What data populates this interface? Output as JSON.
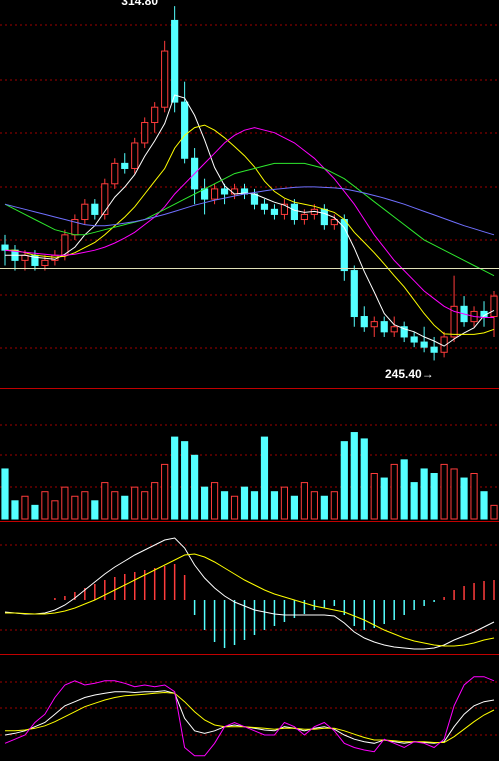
{
  "chart_data": [
    {
      "type": "candlestick",
      "ylim": [
        240,
        316
      ],
      "up_color": "#ff3c3c",
      "down_color": "#54ffff",
      "ohlc": [
        [
          268,
          270,
          264,
          267
        ],
        [
          267,
          268,
          263,
          265
        ],
        [
          265,
          267,
          263,
          266
        ],
        [
          266,
          267,
          263,
          264
        ],
        [
          264,
          266,
          263,
          265
        ],
        [
          265,
          267,
          264,
          266
        ],
        [
          266,
          271,
          265,
          270
        ],
        [
          270,
          274,
          269,
          273
        ],
        [
          273,
          277,
          272,
          276
        ],
        [
          276,
          277,
          273,
          274
        ],
        [
          274,
          281,
          273,
          280
        ],
        [
          280,
          285,
          279,
          284
        ],
        [
          284,
          286,
          282,
          283
        ],
        [
          283,
          289,
          282,
          288
        ],
        [
          288,
          293,
          287,
          292
        ],
        [
          292,
          296,
          290,
          295
        ],
        [
          295,
          308,
          294,
          306
        ],
        [
          312,
          314.8,
          294,
          296
        ],
        [
          296,
          300,
          284,
          285
        ],
        [
          285,
          287,
          276,
          279
        ],
        [
          279,
          281,
          274,
          277
        ],
        [
          277,
          280,
          276,
          279
        ],
        [
          279,
          280,
          276,
          278
        ],
        [
          278,
          280,
          277,
          279
        ],
        [
          279,
          280,
          277,
          278
        ],
        [
          278,
          279,
          275,
          276
        ],
        [
          276,
          277,
          274,
          275
        ],
        [
          275,
          276,
          273,
          274
        ],
        [
          274,
          277,
          273,
          276
        ],
        [
          276,
          277,
          272,
          273
        ],
        [
          273,
          275,
          272,
          274
        ],
        [
          274,
          276,
          273,
          275
        ],
        [
          275,
          276,
          271,
          272
        ],
        [
          272,
          274,
          271,
          273
        ],
        [
          273,
          274,
          261,
          263
        ],
        [
          263,
          264,
          252,
          254
        ],
        [
          254,
          256,
          251,
          252
        ],
        [
          252,
          254,
          250,
          253
        ],
        [
          253,
          254,
          250,
          251
        ],
        [
          251,
          254,
          250,
          252
        ],
        [
          252,
          253,
          249,
          250
        ],
        [
          250,
          251,
          248,
          249
        ],
        [
          249,
          252,
          247,
          248
        ],
        [
          248,
          250,
          245.4,
          247
        ],
        [
          247,
          251,
          246,
          250
        ],
        [
          250,
          262,
          249,
          256
        ],
        [
          256,
          258,
          252,
          253
        ],
        [
          253,
          256,
          252,
          255
        ],
        [
          255,
          257,
          252,
          254
        ],
        [
          254,
          259,
          250,
          258
        ]
      ],
      "series": [
        {
          "color": "#ffffff",
          "values": [
            266,
            266,
            266,
            265.6,
            265.4,
            265.2,
            266.2,
            267.6,
            270,
            271.8,
            274.6,
            277.4,
            279.4,
            281.8,
            285.4,
            288.4,
            291.8,
            297.4,
            296.8,
            293.4,
            288.6,
            283.2,
            279.6,
            278,
            278.2,
            278,
            277.2,
            276.4,
            275.8,
            274.8,
            274.4,
            274.6,
            274.2,
            273.4,
            271.4,
            267.4,
            262.8,
            258.8,
            254.6,
            252.4,
            251.6,
            251,
            250,
            249.2,
            248.2,
            249.6,
            250.8,
            251.8,
            254.2,
            255.2
          ]
        },
        {
          "color": "#ffff00",
          "values": [
            267,
            267,
            266.5,
            266,
            265.8,
            265.6,
            265.8,
            266.5,
            267.5,
            268.5,
            270,
            271.8,
            273.5,
            275.5,
            278,
            280.5,
            283,
            287,
            289.5,
            291,
            291.5,
            290.5,
            289,
            287.3,
            285.5,
            283.3,
            280.5,
            278.5,
            277.2,
            276.4,
            276,
            275.6,
            275,
            274.4,
            273,
            270.5,
            268.5,
            266.5,
            264.3,
            262,
            259.8,
            257.2,
            254.6,
            252.3,
            250.6,
            250.5,
            250.5,
            250.5,
            250.8,
            251.5
          ]
        },
        {
          "color": "#ff00ff",
          "values": [
            267,
            266.8,
            266.6,
            266.4,
            266.2,
            266,
            266,
            266.2,
            266.6,
            267,
            267.6,
            268.4,
            269.4,
            270.5,
            272,
            273.5,
            275.5,
            278,
            280,
            282,
            284,
            286,
            288,
            289.5,
            290.5,
            291,
            290.5,
            290,
            289,
            288,
            286.5,
            285,
            283,
            281,
            278.5,
            276,
            273,
            270,
            267.5,
            265,
            263,
            261,
            259,
            257.5,
            256,
            255,
            254.5,
            254,
            253.8,
            253.8
          ]
        },
        {
          "color": "#2ee82e",
          "values": [
            276,
            275,
            274,
            273,
            272,
            271,
            270.5,
            270,
            270,
            270.5,
            271,
            271.5,
            272,
            272.5,
            273,
            274,
            275,
            276,
            277,
            278,
            279,
            280,
            281,
            282,
            282.5,
            283,
            283.5,
            284,
            284,
            284,
            284,
            283.5,
            283,
            282,
            281,
            279.5,
            278,
            276.5,
            275,
            273.5,
            272,
            270.5,
            269,
            268,
            267,
            266,
            265,
            264,
            263,
            262
          ]
        },
        {
          "color": "#7070ff",
          "values": [
            276,
            275.5,
            275,
            274.5,
            274,
            273.5,
            273,
            272.5,
            272,
            271.8,
            271.8,
            272,
            272.3,
            272.6,
            273,
            273.5,
            274,
            274.6,
            275.2,
            275.8,
            276.3,
            276.8,
            277.2,
            277.6,
            278,
            278.3,
            278.6,
            278.9,
            279.1,
            279.3,
            279.4,
            279.4,
            279.3,
            279.2,
            279,
            278.6,
            278.2,
            277.7,
            277.2,
            276.6,
            276,
            275.3,
            274.6,
            273.9,
            273.2,
            272.5,
            271.8,
            271.2,
            270.6,
            270
          ]
        }
      ],
      "ref_line": 263.4,
      "ref_line_color": "#e0e0b8",
      "annotations": [
        "314.80",
        "245.40→"
      ]
    },
    {
      "type": "volume",
      "ylim": [
        0,
        100
      ],
      "values": [
        55,
        20,
        25,
        15,
        30,
        20,
        35,
        25,
        30,
        20,
        40,
        30,
        25,
        35,
        30,
        40,
        60,
        90,
        85,
        70,
        35,
        40,
        30,
        25,
        35,
        30,
        90,
        30,
        35,
        25,
        40,
        30,
        25,
        30,
        85,
        95,
        88,
        50,
        45,
        60,
        65,
        40,
        55,
        50,
        60,
        55,
        45,
        50,
        30,
        15
      ]
    },
    {
      "type": "macd",
      "ylim": [
        -5.5,
        7.5
      ],
      "up_color": "#ff3c3c",
      "down_color": "#54ffff",
      "histogram": [
        0,
        0,
        0,
        0,
        0,
        0.2,
        0.4,
        0.8,
        1.2,
        1.6,
        2,
        2.3,
        2.6,
        2.8,
        3,
        3.2,
        3.4,
        3.6,
        2.5,
        -1.5,
        -3,
        -4.2,
        -4.8,
        -4.5,
        -4,
        -3.5,
        -3,
        -2.6,
        -2.2,
        -1.8,
        -1.4,
        -1,
        -0.8,
        -0.6,
        -1.5,
        -2.6,
        -3,
        -2.8,
        -2.4,
        -2,
        -1.5,
        -1,
        -0.6,
        -0.2,
        0.3,
        1,
        1.4,
        1.7,
        1.9,
        2
      ],
      "series": [
        {
          "color": "#ffffff",
          "values": [
            -1.2,
            -1.3,
            -1.4,
            -1.4,
            -1.3,
            -1,
            -0.5,
            0.2,
            1,
            1.8,
            2.6,
            3.3,
            3.9,
            4.5,
            5,
            5.5,
            6,
            6.2,
            5.2,
            3.5,
            2.2,
            1.2,
            0.4,
            -0.2,
            -0.6,
            -1,
            -1.2,
            -1.4,
            -1.5,
            -1.5,
            -1.5,
            -1.5,
            -1.5,
            -1.6,
            -2.3,
            -3.2,
            -3.8,
            -4.2,
            -4.5,
            -4.7,
            -4.8,
            -4.9,
            -4.9,
            -4.8,
            -4.5,
            -4,
            -3.6,
            -3.2,
            -2.7,
            -2.2
          ]
        },
        {
          "color": "#ffff00",
          "values": [
            -1.3,
            -1.3,
            -1.35,
            -1.4,
            -1.4,
            -1.3,
            -1.1,
            -0.8,
            -0.4,
            0,
            0.5,
            1,
            1.5,
            2,
            2.5,
            3,
            3.5,
            4,
            4.5,
            4.6,
            4.3,
            3.8,
            3.2,
            2.6,
            2,
            1.5,
            1,
            0.6,
            0.3,
            0,
            -0.3,
            -0.6,
            -0.8,
            -1,
            -1.2,
            -1.6,
            -2,
            -2.5,
            -3,
            -3.4,
            -3.8,
            -4.1,
            -4.3,
            -4.5,
            -4.6,
            -4.6,
            -4.5,
            -4.3,
            -4,
            -3.8
          ]
        }
      ]
    },
    {
      "type": "line",
      "ylim": [
        -10,
        110
      ],
      "series": [
        {
          "color": "#ffffff",
          "values": [
            20,
            22,
            25,
            30,
            35,
            45,
            55,
            60,
            65,
            68,
            70,
            72,
            72,
            71,
            72,
            72,
            73,
            70,
            40,
            25,
            22,
            25,
            30,
            32,
            30,
            28,
            26,
            25,
            30,
            28,
            25,
            28,
            30,
            27,
            20,
            15,
            12,
            10,
            14,
            12,
            10,
            12,
            11,
            10,
            12,
            30,
            45,
            55,
            60,
            62
          ]
        },
        {
          "color": "#ffff00",
          "values": [
            25,
            25,
            26,
            28,
            31,
            36,
            42,
            48,
            54,
            58,
            62,
            65,
            67,
            68,
            69,
            70,
            71,
            70,
            60,
            48,
            38,
            32,
            30,
            30,
            30,
            29,
            28,
            27,
            28,
            28,
            27,
            27,
            28,
            28,
            25,
            21,
            17,
            14,
            14,
            13,
            12,
            12,
            12,
            11,
            11,
            18,
            27,
            36,
            44,
            50
          ]
        },
        {
          "color": "#ff00ff",
          "values": [
            10,
            15,
            20,
            35,
            45,
            65,
            80,
            85,
            80,
            82,
            85,
            85,
            82,
            78,
            80,
            78,
            80,
            72,
            5,
            -5,
            -5,
            10,
            30,
            35,
            30,
            25,
            20,
            20,
            35,
            30,
            20,
            30,
            35,
            25,
            10,
            5,
            2,
            0,
            15,
            10,
            5,
            12,
            10,
            5,
            15,
            55,
            80,
            90,
            90,
            85
          ]
        }
      ]
    }
  ]
}
